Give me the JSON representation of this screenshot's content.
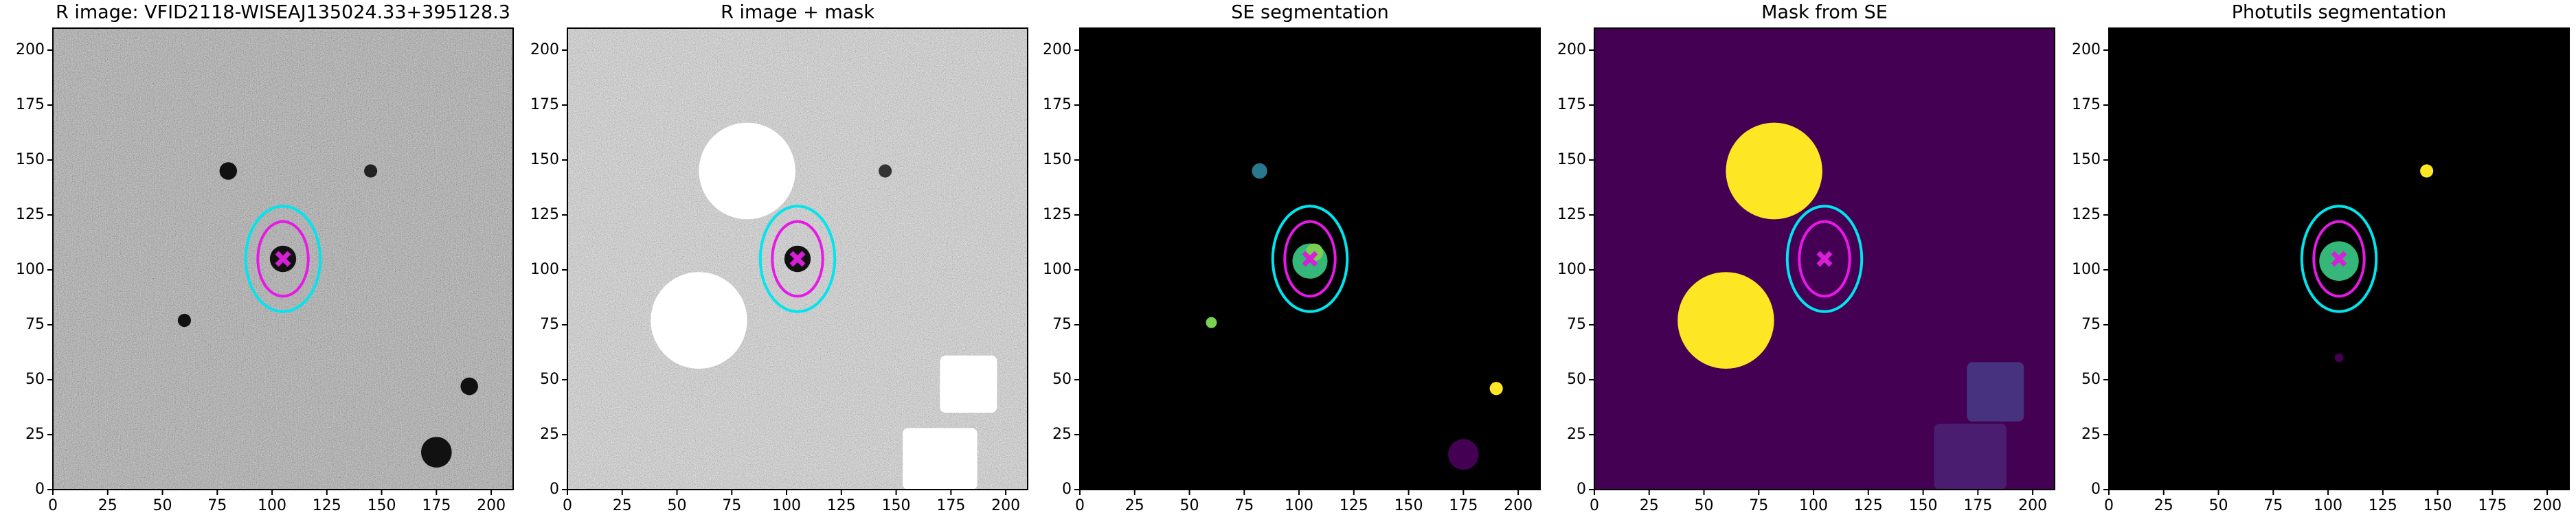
{
  "chart_data": [
    {
      "type": "image",
      "title": "R image: VFID2118-WISEAJ135024.33+395128.3",
      "xlim": [
        0,
        210
      ],
      "ylim": [
        0,
        210
      ],
      "xticks": [
        0,
        25,
        50,
        75,
        100,
        125,
        150,
        175,
        200
      ],
      "yticks": [
        0,
        25,
        50,
        75,
        100,
        125,
        150,
        175,
        200
      ]
    },
    {
      "type": "image",
      "title": "R image + mask",
      "xlim": [
        0,
        210
      ],
      "ylim": [
        0,
        210
      ],
      "xticks": [
        0,
        25,
        50,
        75,
        100,
        125,
        150,
        175,
        200
      ],
      "yticks": [
        0,
        25,
        50,
        75,
        100,
        125,
        150,
        175,
        200
      ]
    },
    {
      "type": "image",
      "title": "SE segmentation",
      "xlim": [
        0,
        210
      ],
      "ylim": [
        0,
        210
      ],
      "xticks": [
        0,
        25,
        50,
        75,
        100,
        125,
        150,
        175,
        200
      ],
      "yticks": [
        0,
        25,
        50,
        75,
        100,
        125,
        150,
        175,
        200
      ]
    },
    {
      "type": "image",
      "title": "Mask from SE",
      "xlim": [
        0,
        210
      ],
      "ylim": [
        0,
        210
      ],
      "xticks": [
        0,
        25,
        50,
        75,
        100,
        125,
        150,
        175,
        200
      ],
      "yticks": [
        0,
        25,
        50,
        75,
        100,
        125,
        150,
        175,
        200
      ]
    },
    {
      "type": "image",
      "title": "Photutils segmentation",
      "xlim": [
        0,
        210
      ],
      "ylim": [
        0,
        210
      ],
      "xticks": [
        0,
        25,
        50,
        75,
        100,
        125,
        150,
        175,
        200
      ],
      "yticks": [
        0,
        25,
        50,
        75,
        100,
        125,
        150,
        175,
        200
      ]
    }
  ]
}
